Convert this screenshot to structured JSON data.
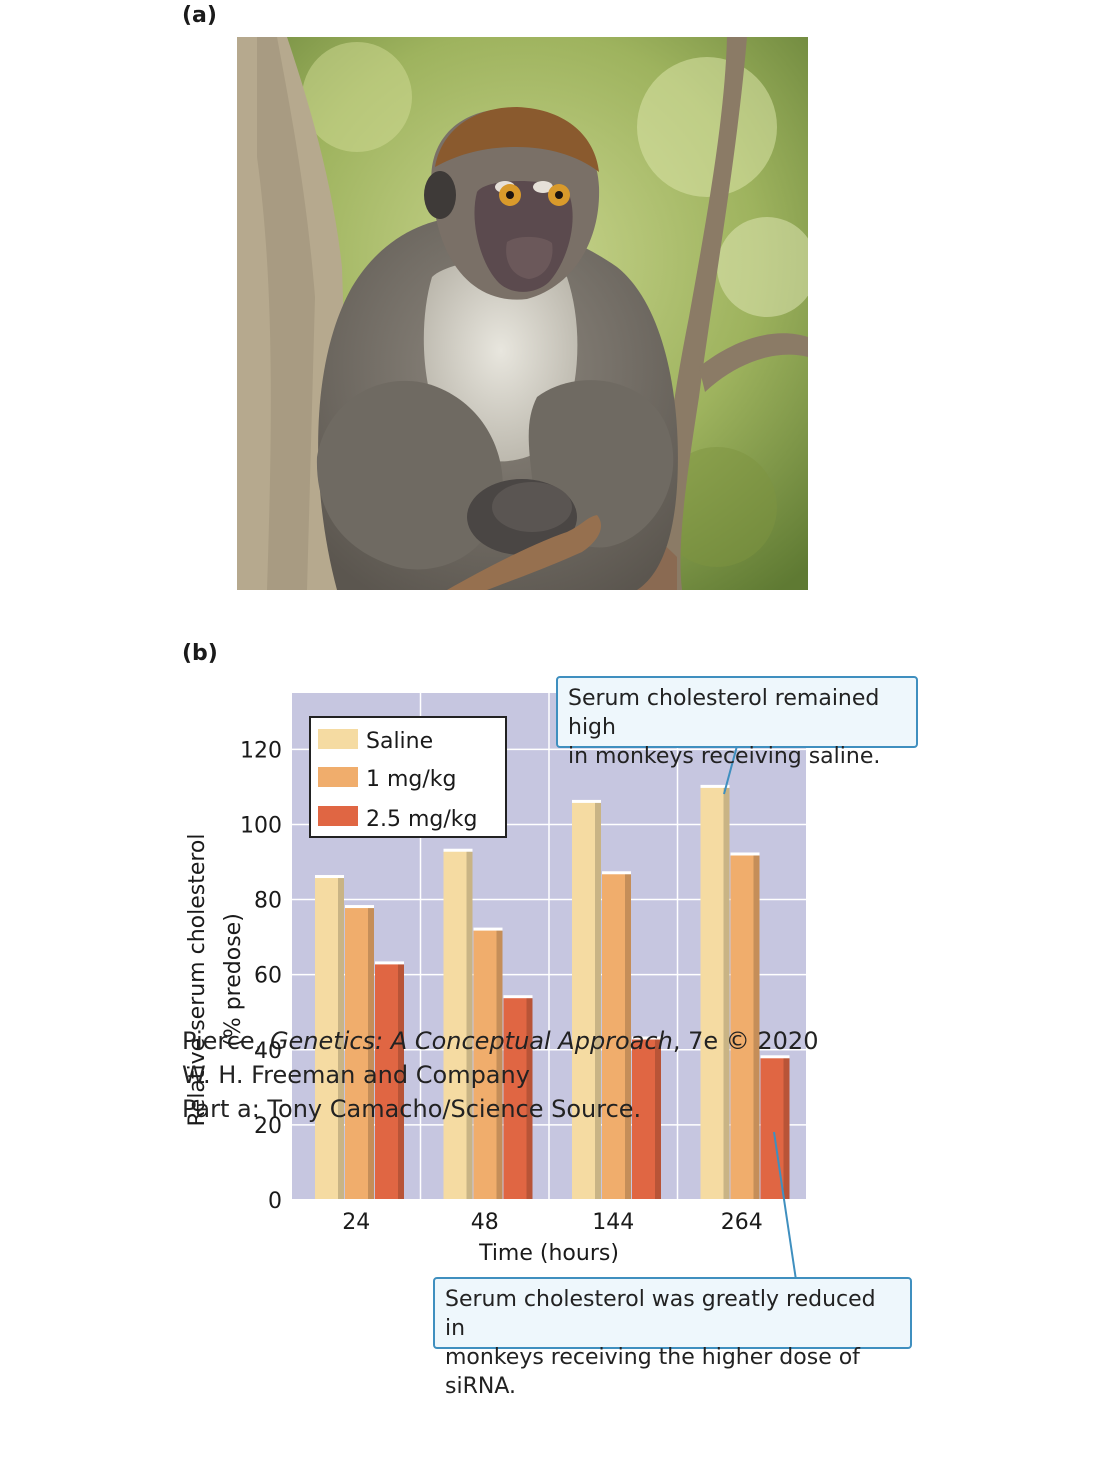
{
  "panels": {
    "a": "(a)",
    "b": "(b)"
  },
  "photo": {
    "subject": "macaque-monkey-on-branch",
    "colors": {
      "fur_cap": "#8a5a2e",
      "fur_body": "#7a756e",
      "chest": "#dcdad2",
      "face": "#5b4a4e",
      "eyes": "#d99a2b",
      "bark": "#b2a58c",
      "foliage": "#a9b86a"
    }
  },
  "chart_data": {
    "type": "bar",
    "categories": [
      "24",
      "48",
      "144",
      "264"
    ],
    "series": [
      {
        "name": "Saline",
        "values": [
          86,
          93,
          106,
          110
        ],
        "color": "#f5dba2"
      },
      {
        "name": "1 mg/kg",
        "values": [
          78,
          72,
          87,
          92
        ],
        "color": "#f0ad6c"
      },
      {
        "name": "2.5 mg/kg",
        "values": [
          63,
          54,
          43,
          38
        ],
        "color": "#e06643"
      }
    ],
    "xlabel": "Time (hours)",
    "ylabel_lines": [
      "Relative serum cholesterol",
      "(% predose)"
    ],
    "yticks": [
      0,
      20,
      40,
      60,
      80,
      100,
      120
    ],
    "ylim": [
      0,
      135
    ],
    "grid": true,
    "plot_background": "#c6c6e0",
    "legend_position": "top-left"
  },
  "annotations": {
    "high": [
      "Serum cholesterol remained high",
      "in monkeys receiving saline."
    ],
    "reduced": [
      "Serum cholesterol was greatly reduced in",
      "monkeys receiving the higher dose of siRNA."
    ]
  },
  "credits": {
    "line1_pre": "Pierce, ",
    "line1_title": "Genetics: A Conceptual Approach",
    "line1_post": ", 7e © 2020",
    "line2": "W. H. Freeman and Company",
    "line3": "Part a: Tony Camacho/Science Source."
  }
}
